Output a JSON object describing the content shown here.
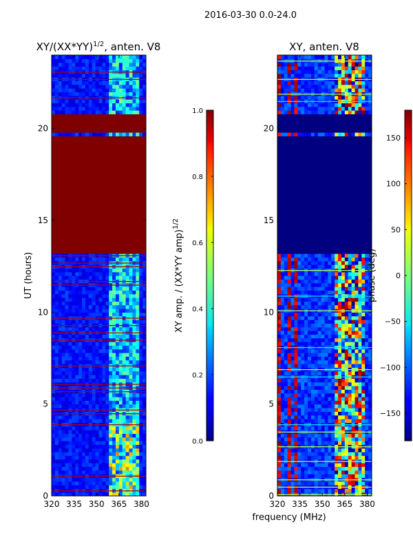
{
  "suptitle": "2016-03-30 0.0-24.0",
  "chart_data": [
    {
      "type": "heatmap",
      "title_main": "XY/(XX*YY)",
      "title_sup": "1/2",
      "title_rest": ", anten. V8",
      "xlabel": "",
      "ylabel": "UT (hours)",
      "xlim": [
        320,
        383
      ],
      "ylim": [
        0,
        24
      ],
      "xticks": [
        320,
        335,
        350,
        365,
        380
      ],
      "yticks": [
        0,
        5,
        10,
        15,
        20
      ],
      "colorbar": {
        "label_main": "XY amp. / (XX*YY amp)",
        "label_sup": "1/2",
        "range": [
          0.0,
          1.0
        ],
        "ticks": [
          "0.0",
          "0.2",
          "0.4",
          "0.6",
          "0.8",
          "1.0"
        ],
        "colormap": "jet"
      },
      "saturated_time_ranges": [
        [
          13.3,
          19.6
        ],
        [
          19.8,
          20.8
        ]
      ],
      "saturated_value": 1.0,
      "high_value_band_MHz": [
        360,
        378
      ]
    },
    {
      "type": "heatmap",
      "title_main": "XY, anten. V8",
      "xlabel": "frequency (MHz)",
      "ylabel": "",
      "xlim": [
        320,
        383
      ],
      "ylim": [
        0,
        24
      ],
      "xticks": [
        320,
        335,
        350,
        365,
        380
      ],
      "yticks": [
        0,
        5,
        10,
        15,
        20
      ],
      "colorbar": {
        "label_main": "phase (deg)",
        "range": [
          -180,
          180
        ],
        "ticks": [
          "−150",
          "−100",
          "−50",
          "0",
          "50",
          "100",
          "150"
        ],
        "tick_values": [
          -150,
          -100,
          -50,
          0,
          50,
          100,
          150
        ],
        "colormap": "jet"
      },
      "flat_time_ranges": [
        [
          13.3,
          19.6
        ],
        [
          19.8,
          20.8
        ]
      ],
      "flat_value": -180,
      "red_columns_MHz": [
        320,
        328,
        333
      ],
      "active_band_MHz": [
        360,
        378
      ]
    }
  ],
  "colors": {
    "jet_low": "#00007f",
    "jet_high": "#7f0000",
    "background": "#ffffff"
  }
}
